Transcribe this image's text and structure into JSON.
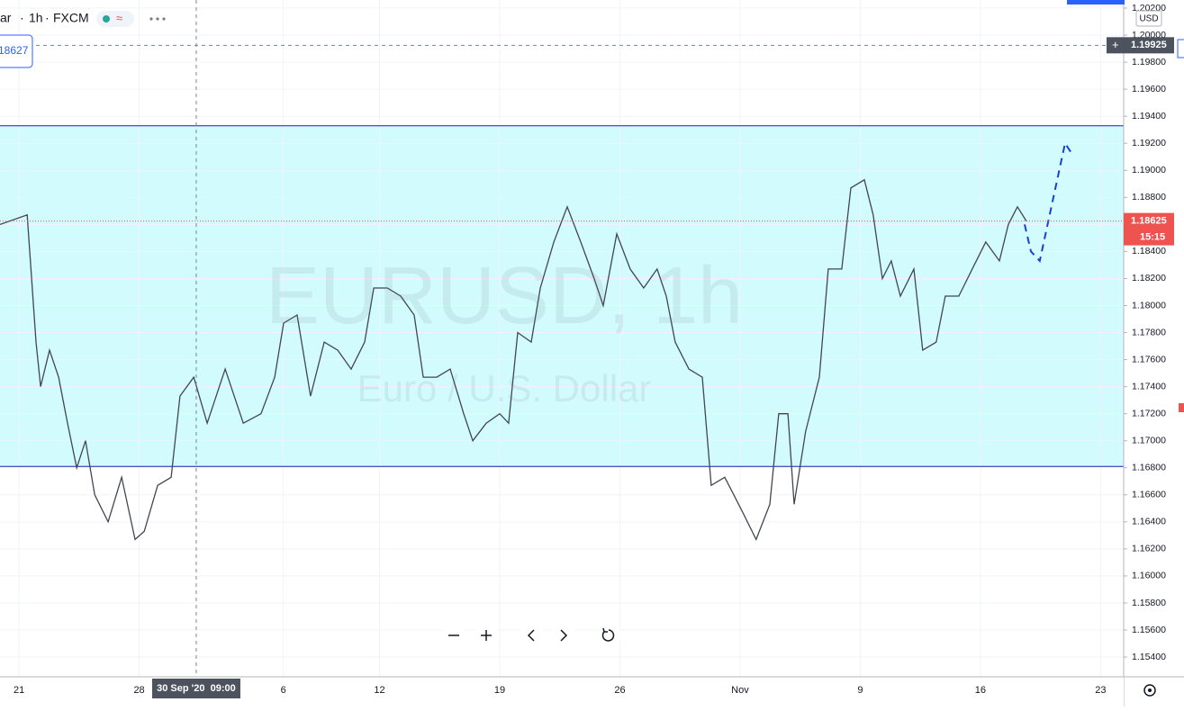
{
  "header": {
    "symbol_partial": "ar",
    "interval": "1h",
    "source": "FXCM",
    "price_box": "18627"
  },
  "chart_data": {
    "type": "line",
    "watermark": "EURUSD, 1h",
    "watermark_sub": "Euro / U.S. Dollar",
    "currency": "USD",
    "color": "#434651",
    "x": [
      -0.79,
      0.34,
      0.71,
      0.9,
      1.27,
      1.65,
      2.02,
      2.4,
      2.77,
      3.15,
      3.71,
      4.27,
      4.83,
      5.21,
      5.77,
      6.33,
      6.7,
      7.27,
      7.83,
      8.58,
      9.33,
      10.07,
      10.64,
      11.01,
      11.57,
      12.13,
      12.7,
      13.26,
      13.82,
      14.38,
      14.76,
      15.32,
      15.88,
      16.44,
      16.82,
      17.38,
      17.94,
      18.5,
      18.88,
      19.44,
      20.0,
      20.37,
      20.75,
      21.31,
      21.69,
      22.25,
      22.81,
      23.37,
      23.93,
      24.31,
      24.87,
      25.43,
      25.99,
      26.55,
      26.93,
      27.3,
      27.87,
      28.43,
      28.8,
      29.36,
      29.74,
      30.11,
      30.67,
      31.24,
      31.61,
      31.99,
      32.25,
      32.73,
      33.3,
      33.67,
      34.23,
      34.61,
      35.17,
      35.54,
      35.92,
      36.29,
      36.67,
      37.23,
      37.6,
      38.16,
      38.54,
      39.1,
      39.66,
      40.22,
      40.79,
      41.16,
      41.54,
      41.91
    ],
    "values": [
      1.186,
      1.1867,
      1.1773,
      1.174,
      1.1767,
      1.1747,
      1.1713,
      1.168,
      1.17,
      1.166,
      1.164,
      1.1673,
      1.1627,
      1.1633,
      1.1667,
      1.1673,
      1.1733,
      1.1747,
      1.1713,
      1.1753,
      1.1713,
      1.172,
      1.1747,
      1.1787,
      1.1793,
      1.1733,
      1.1773,
      1.1767,
      1.1753,
      1.1773,
      1.1813,
      1.1813,
      1.1807,
      1.1793,
      1.1747,
      1.1747,
      1.1753,
      1.172,
      1.17,
      1.1713,
      1.172,
      1.1713,
      1.178,
      1.1773,
      1.1813,
      1.1847,
      1.1873,
      1.1847,
      1.182,
      1.18,
      1.1853,
      1.1827,
      1.1813,
      1.1827,
      1.1807,
      1.1773,
      1.1753,
      1.1747,
      1.1667,
      1.1673,
      1.166,
      1.1647,
      1.1627,
      1.1653,
      1.172,
      1.172,
      1.1653,
      1.1707,
      1.1747,
      1.1827,
      1.1827,
      1.1887,
      1.1893,
      1.1867,
      1.182,
      1.1833,
      1.1807,
      1.1827,
      1.1767,
      1.1773,
      1.1807,
      1.1807,
      1.1827,
      1.1847,
      1.1833,
      1.186,
      1.1873,
      1.18625
    ],
    "range_box": {
      "low": 1.1681,
      "high": 1.1933,
      "fill": "#d1fbfd",
      "stroke": "#1a1fa8"
    },
    "projection": {
      "color": "#1a3fd8",
      "x": [
        41.84,
        42.1,
        42.47,
        43.52,
        43.78
      ],
      "values": [
        1.186,
        1.184,
        1.1833,
        1.192,
        1.1913
      ]
    },
    "last_price": 1.18625,
    "countdown": "15:15",
    "crosshair": {
      "price": 1.19925,
      "time": {
        "value": 7.375,
        "label": "30 Sep '20  09:00"
      }
    },
    "xlim": [
      -0.79,
      45.96
    ],
    "xticks": [
      {
        "value": 0,
        "label": "21"
      },
      {
        "value": 5,
        "label": "28"
      },
      {
        "value": 11,
        "label": "6"
      },
      {
        "value": 15,
        "label": "12"
      },
      {
        "value": 20,
        "label": "19"
      },
      {
        "value": 25,
        "label": "26"
      },
      {
        "value": 30,
        "label": "Nov"
      },
      {
        "value": 35,
        "label": "9"
      },
      {
        "value": 40,
        "label": "16"
      },
      {
        "value": 45,
        "label": "23"
      }
    ],
    "ylim": [
      1.15254,
      1.2026
    ],
    "yticks": [
      {
        "value": 1.154,
        "label": "1.15400"
      },
      {
        "value": 1.156,
        "label": "1.15600"
      },
      {
        "value": 1.158,
        "label": "1.15800"
      },
      {
        "value": 1.16,
        "label": "1.16000"
      },
      {
        "value": 1.162,
        "label": "1.16200"
      },
      {
        "value": 1.164,
        "label": "1.16400"
      },
      {
        "value": 1.166,
        "label": "1.16600"
      },
      {
        "value": 1.168,
        "label": "1.16800"
      },
      {
        "value": 1.17,
        "label": "1.17000"
      },
      {
        "value": 1.172,
        "label": "1.17200"
      },
      {
        "value": 1.174,
        "label": "1.17400"
      },
      {
        "value": 1.176,
        "label": "1.17600"
      },
      {
        "value": 1.178,
        "label": "1.17800"
      },
      {
        "value": 1.18,
        "label": "1.18000"
      },
      {
        "value": 1.182,
        "label": "1.18200"
      },
      {
        "value": 1.184,
        "label": "1.18400"
      },
      {
        "value": 1.186,
        "label": "1.18600"
      },
      {
        "value": 1.188,
        "label": "1.18800"
      },
      {
        "value": 1.19,
        "label": "1.19000"
      },
      {
        "value": 1.192,
        "label": "1.19200"
      },
      {
        "value": 1.194,
        "label": "1.19400"
      },
      {
        "value": 1.196,
        "label": "1.19600"
      },
      {
        "value": 1.198,
        "label": "1.19800"
      },
      {
        "value": 1.2,
        "label": "1.20000"
      },
      {
        "value": 1.202,
        "label": "1.20200"
      }
    ],
    "grid": true
  }
}
